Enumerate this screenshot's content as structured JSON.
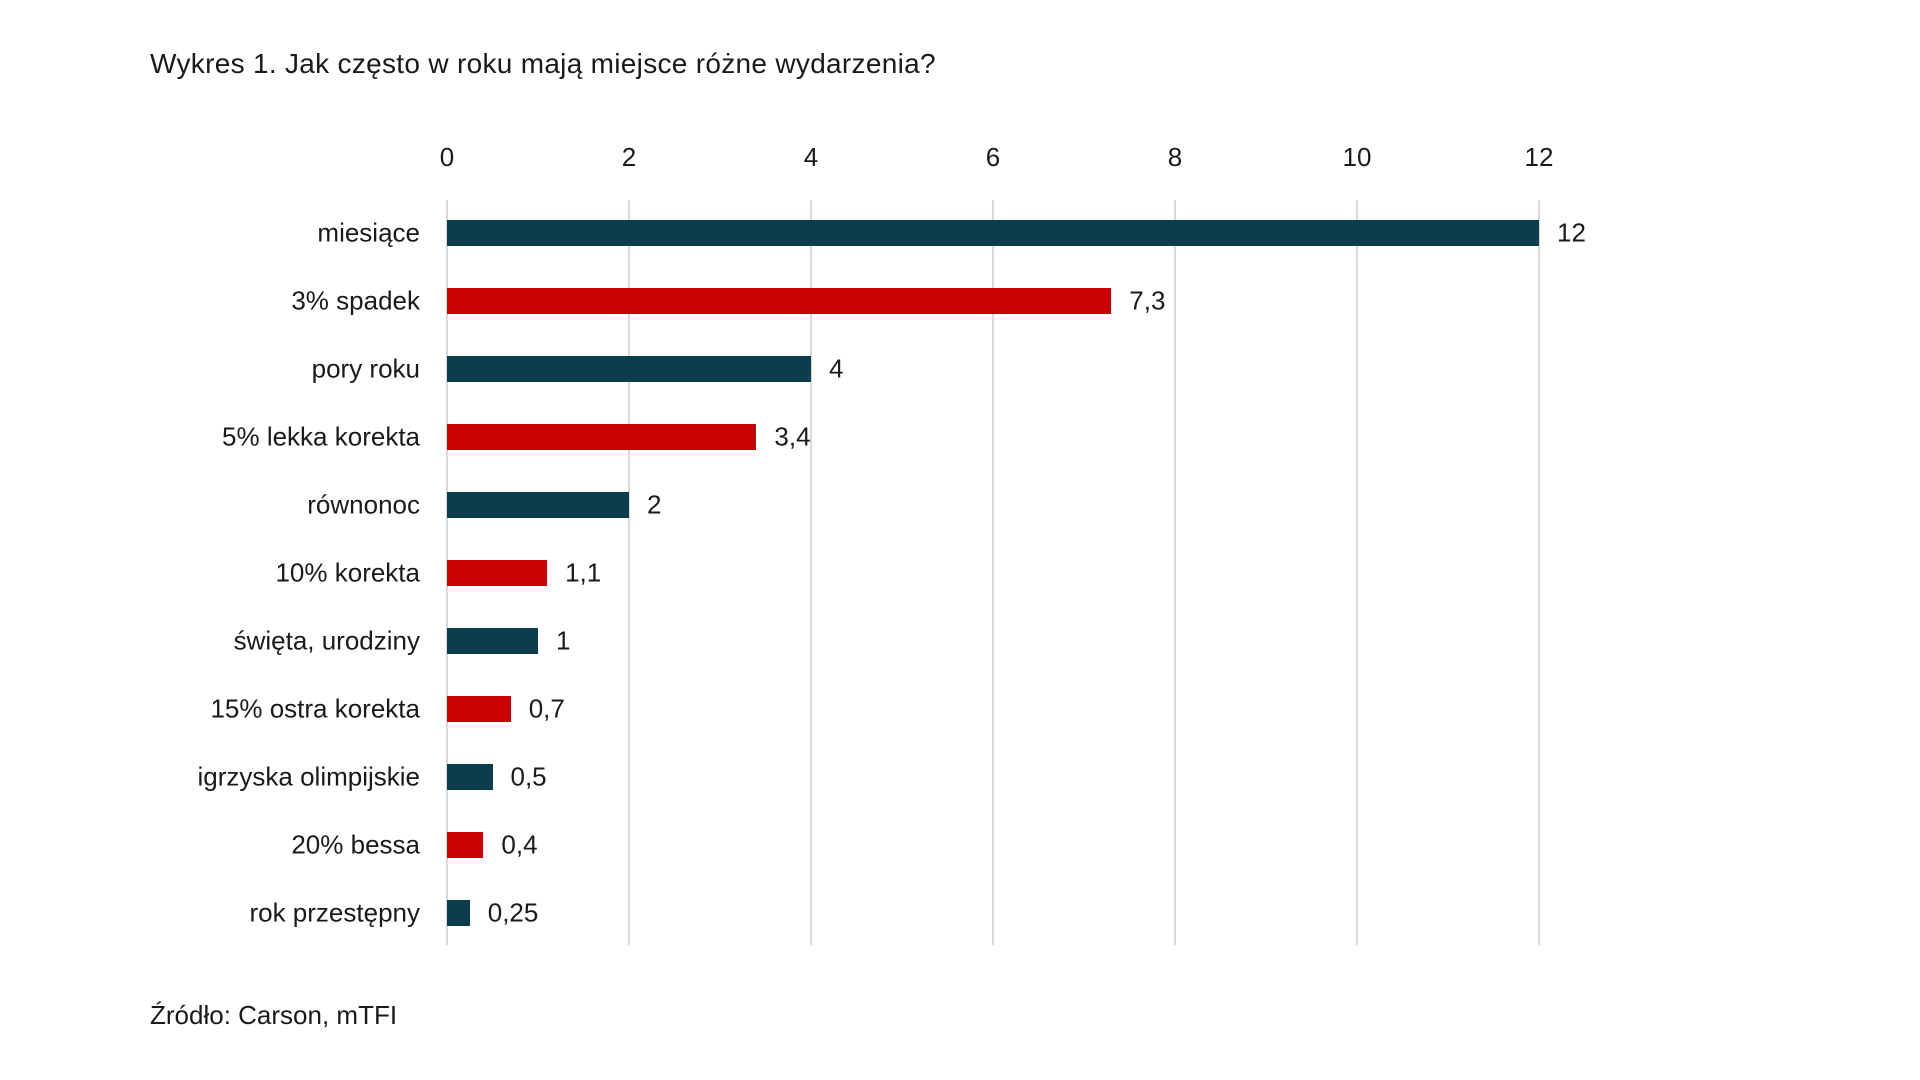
{
  "title": "Wykres 1. Jak często w roku mają miejsce różne wydarzenia?",
  "source": "Źródło: Carson, mTFI",
  "colors": {
    "bar_dark": "#0b3d4e",
    "bar_red": "#c80202",
    "gridline": "#d9d9d9",
    "text": "#1a1a1a",
    "background": "#ffffff"
  },
  "chart_data": {
    "type": "bar",
    "orientation": "horizontal",
    "title": "Wykres 1. Jak często w roku mają miejsce różne wydarzenia?",
    "xlabel": "",
    "ylabel": "",
    "xlim": [
      0,
      12
    ],
    "x_ticks": [
      "0",
      "2",
      "4",
      "6",
      "8",
      "10",
      "12"
    ],
    "x_tick_values": [
      0,
      2,
      4,
      6,
      8,
      10,
      12
    ],
    "axis_position": "top",
    "grid": true,
    "legend": false,
    "categories": [
      "miesiące",
      "3% spadek",
      "pory roku",
      "5% lekka korekta",
      "równonoc",
      "10% korekta",
      "święta, urodziny",
      "15% ostra korekta",
      "igrzyska olimpijskie",
      "20% bessa",
      "rok przestępny"
    ],
    "values": [
      12,
      7.3,
      4,
      3.4,
      2,
      1.1,
      1,
      0.7,
      0.5,
      0.4,
      0.25
    ],
    "value_labels": [
      "12",
      "7,3",
      "4",
      "3,4",
      "2",
      "1,1",
      "1",
      "0,7",
      "0,5",
      "0,4",
      "0,25"
    ],
    "bar_color_keys": [
      "bar_dark",
      "bar_red",
      "bar_dark",
      "bar_red",
      "bar_dark",
      "bar_red",
      "bar_dark",
      "bar_red",
      "bar_dark",
      "bar_red",
      "bar_dark"
    ]
  }
}
